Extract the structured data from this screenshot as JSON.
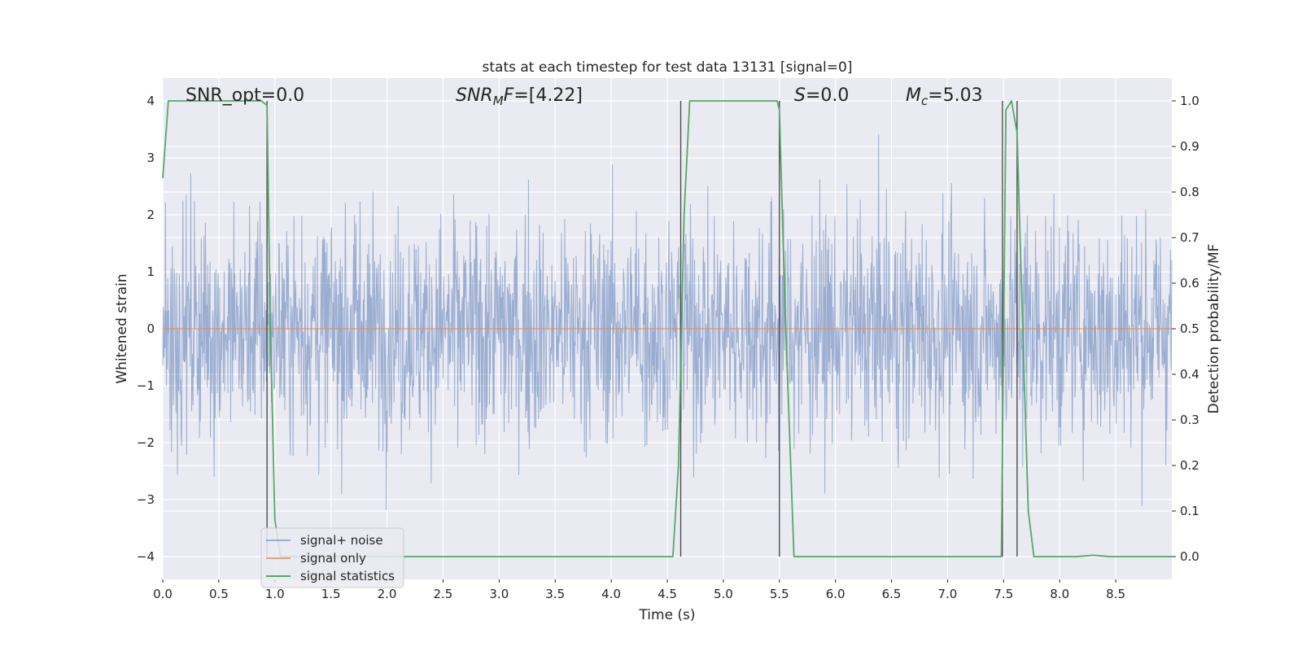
{
  "chart_data": {
    "type": "line",
    "title": "stats at each timestep for test data 13131 [signal=0]",
    "xlabel": "Time (s)",
    "ylabel_left": "Whitened strain",
    "ylabel_right": "Detection probability/MF",
    "xlim": [
      0.0,
      9.0
    ],
    "ylim_left": [
      -4.4,
      4.4
    ],
    "ylim_right": [
      -0.05,
      1.05
    ],
    "x_ticks": [
      "0.0",
      "0.5",
      "1.0",
      "1.5",
      "2.0",
      "2.5",
      "3.0",
      "3.5",
      "4.0",
      "4.5",
      "5.0",
      "5.5",
      "6.0",
      "6.5",
      "7.0",
      "7.5",
      "8.0",
      "8.5"
    ],
    "y_left_ticks": [
      "−4",
      "−3",
      "−2",
      "−1",
      "0",
      "1",
      "2",
      "3",
      "4"
    ],
    "y_right_ticks": [
      "0.0",
      "0.1",
      "0.2",
      "0.3",
      "0.4",
      "0.5",
      "0.6",
      "0.7",
      "0.8",
      "0.9",
      "1.0"
    ],
    "grid": true,
    "legend_position": "lower-left",
    "annotations": [
      {
        "label": "SNR_opt=0.0",
        "x": 0.2
      },
      {
        "label": "SNR_MF=[4.22]",
        "x": 2.6
      },
      {
        "label": "S=0.0",
        "x": 5.62
      },
      {
        "label": "M_c=5.03",
        "x": 6.62
      }
    ],
    "annotation_parts": {
      "a1": "SNR_opt=0.0",
      "a2_snr": "SNR",
      "a2_sub": "M",
      "a2_f": "F",
      "a2_val": "=[4.22]",
      "a3_s": "S",
      "a3_val": "=0.0",
      "a4_m": "M",
      "a4_sub": "c",
      "a4_val": "=5.03"
    },
    "vertical_lines_x": [
      0.93,
      4.62,
      5.5,
      7.49,
      7.62
    ],
    "series": [
      {
        "name": "signal+ noise",
        "axis": "left",
        "color": "#4c72b0",
        "description_values": "noise trace, roughly between -3.7 and 3.8",
        "amplitude_range": [
          -3.7,
          3.8
        ]
      },
      {
        "name": "signal only",
        "axis": "left",
        "color": "#dd8452",
        "x": [
          0.0,
          9.0
        ],
        "y": [
          0.0,
          0.0
        ]
      },
      {
        "name": "signal statistics",
        "axis": "right",
        "color": "#55a868",
        "x": [
          0.0,
          0.05,
          0.1,
          0.88,
          0.93,
          0.96,
          1.0,
          1.05,
          4.55,
          4.6,
          4.65,
          4.7,
          5.48,
          5.5,
          5.55,
          5.63,
          7.48,
          7.52,
          7.57,
          7.62,
          7.67,
          7.72,
          7.77,
          8.15,
          8.3,
          8.45,
          9.0
        ],
        "y": [
          0.83,
          1.0,
          1.0,
          1.0,
          0.99,
          0.5,
          0.08,
          0.0,
          0.0,
          0.2,
          0.75,
          1.0,
          1.0,
          0.98,
          0.55,
          0.0,
          0.0,
          0.98,
          1.0,
          0.93,
          0.5,
          0.1,
          0.0,
          0.0,
          0.003,
          0.0,
          0.0
        ]
      }
    ]
  }
}
